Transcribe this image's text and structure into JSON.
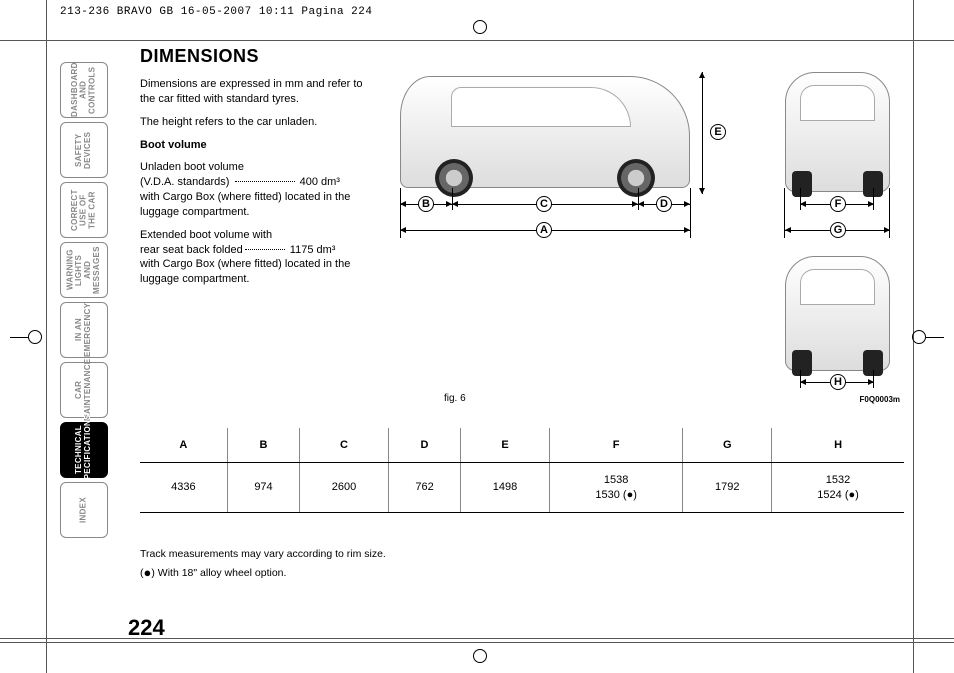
{
  "meta_header": "213-236 BRAVO GB  16-05-2007  10:11  Pagina 224",
  "tabs": [
    {
      "label": "DASHBOARD AND CONTROLS",
      "active": false
    },
    {
      "label": "SAFETY DEVICES",
      "active": false
    },
    {
      "label": "CORRECT USE OF THE CAR",
      "active": false
    },
    {
      "label": "WARNING LIGHTS AND MESSAGES",
      "active": false
    },
    {
      "label": "IN AN EMERGENCY",
      "active": false
    },
    {
      "label": "CAR MAINTENANCE",
      "active": false
    },
    {
      "label": "TECHNICAL SPECIFICATIONS",
      "active": true
    },
    {
      "label": "INDEX",
      "active": false
    }
  ],
  "title": "DIMENSIONS",
  "intro_1": "Dimensions are expressed in mm and refer to the car fitted with standard tyres.",
  "intro_2": "The height refers to the car unladen.",
  "boot_heading": "Boot volume",
  "boot_p1a": "Unladen boot volume",
  "boot_p1b": "(V.D.A. standards)",
  "boot_val1": "400 dm³",
  "boot_p1c": "with Cargo Box (where fitted) located in the luggage compartment.",
  "boot_p2a": "Extended boot volume with",
  "boot_p2b": "rear seat back folded",
  "boot_val2": "1175 dm³",
  "boot_p2c": "with Cargo Box (where fitted) located in the luggage compartment.",
  "figure_label": "fig. 6",
  "figure_code": "F0Q0003m",
  "dim_letters": {
    "A": "A",
    "B": "B",
    "C": "C",
    "D": "D",
    "E": "E",
    "F": "F",
    "G": "G",
    "H": "H"
  },
  "table": {
    "headers": [
      "A",
      "B",
      "C",
      "D",
      "E",
      "F",
      "G",
      "H"
    ],
    "rows": [
      [
        "4336",
        "974",
        "2600",
        "762",
        "1498",
        "1538\n1530 (●)",
        "1792",
        "1532\n1524 (●)"
      ]
    ]
  },
  "footnote_1": "Track measurements may vary according to rim size.",
  "footnote_2": "(●) With 18\" alloy wheel option.",
  "page_number": "224"
}
